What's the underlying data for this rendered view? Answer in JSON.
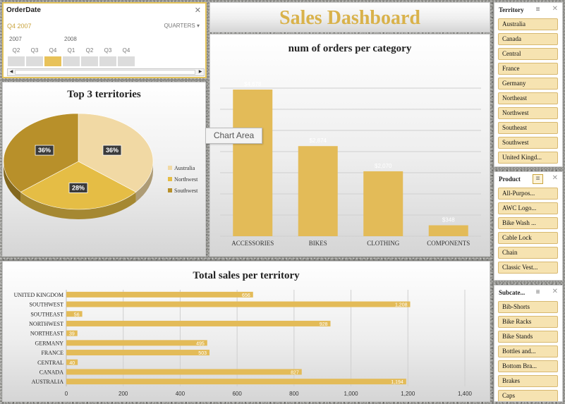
{
  "timeline": {
    "header": "OrderDate",
    "selection": "Q4 2007",
    "level": "QUARTERS ▾",
    "years": [
      "2007",
      "2008"
    ],
    "quarters": [
      "Q2",
      "Q3",
      "Q4",
      "Q1",
      "Q2",
      "Q3",
      "Q4"
    ],
    "active_index": 2
  },
  "dashboard": {
    "title": "Sales Dashboard"
  },
  "tooltip": "Chart Area",
  "chart_data": [
    {
      "type": "bar",
      "title": "num of orders per category",
      "categories": [
        "ACCESSORIES",
        "BIKES",
        "CLOTHING",
        "COMPONENTS"
      ],
      "values": [
        4678,
        2874,
        2070,
        348
      ],
      "data_labels": [
        "$4,678",
        "$2,874",
        "$2,070",
        "$348"
      ],
      "color": "#e3bb58"
    },
    {
      "type": "pie",
      "title": "Top 3 territories",
      "categories": [
        "Australia",
        "Northwest",
        "Southwest"
      ],
      "values": [
        36,
        28,
        36
      ],
      "data_labels": [
        "36%",
        "28%",
        "36%"
      ],
      "colors": [
        "#f1d9a4",
        "#e5bd45",
        "#b8902a"
      ],
      "legend": "right"
    },
    {
      "type": "bar",
      "orientation": "horizontal",
      "title": "Total sales per territory",
      "categories": [
        "UNITED KINGDOM",
        "SOUTHWEST",
        "SOUTHEAST",
        "NORTHWEST",
        "NORTHEAST",
        "GERMANY",
        "FRANCE",
        "CENTRAL",
        "CANADA",
        "AUSTRALIA"
      ],
      "values": [
        656,
        1208,
        56,
        928,
        39,
        495,
        503,
        40,
        827,
        1194
      ],
      "data_labels": [
        "656",
        "1,208",
        "56",
        "928",
        "39",
        "495",
        "503",
        "40",
        "827",
        "1,194"
      ],
      "xlim": [
        0,
        1400
      ],
      "xticks": [
        "0",
        "200",
        "400",
        "600",
        "800",
        "1,000",
        "1,200",
        "1,400"
      ],
      "color": "#e3bb58",
      "grid": true
    }
  ],
  "slicers": {
    "territory": {
      "header": "Territory",
      "items": [
        "Australia",
        "Canada",
        "Central",
        "France",
        "Germany",
        "Northeast",
        "Northwest",
        "Southeast",
        "Southwest",
        "United Kingd..."
      ]
    },
    "product": {
      "header": "Product",
      "items": [
        "All-Purpos...",
        "AWC Logo...",
        "Bike Wash ...",
        "Cable Lock",
        "Chain",
        "Classic Vest..."
      ]
    },
    "subcategory": {
      "header": "Subcate...",
      "items": [
        "Bib-Shorts",
        "Bike Racks",
        "Bike Stands",
        "Bottles and...",
        "Bottom Bra...",
        "Brakes",
        "Caps"
      ]
    }
  }
}
